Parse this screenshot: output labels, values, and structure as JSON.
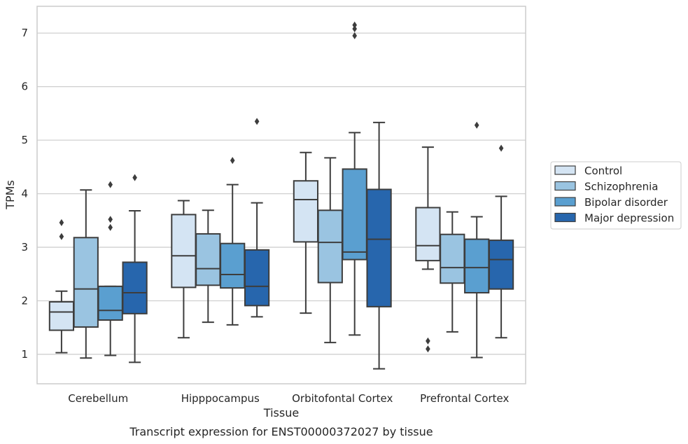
{
  "chart_data": {
    "type": "box",
    "caption": "Transcript expression for ENST00000372027 by tissue",
    "xlabel": "Tissue",
    "ylabel": "TPMs",
    "ylim": [
      0.45,
      7.5
    ],
    "yticks": [
      1,
      2,
      3,
      4,
      5,
      6,
      7
    ],
    "grid": "horizontal",
    "legend_position": "right",
    "categories": [
      "Cerebellum",
      "Hipppocampus",
      "Orbitofontal Cortex",
      "Prefrontal Cortex"
    ],
    "series": [
      {
        "name": "Control",
        "color": "#d4e4f3",
        "boxes": [
          {
            "min": 1.03,
            "q1": 1.45,
            "median": 1.79,
            "q3": 1.98,
            "max": 2.18,
            "outliers": [
              3.2,
              3.46
            ]
          },
          {
            "min": 1.31,
            "q1": 2.25,
            "median": 2.84,
            "q3": 3.61,
            "max": 3.87,
            "outliers": []
          },
          {
            "min": 1.77,
            "q1": 3.1,
            "median": 3.89,
            "q3": 4.24,
            "max": 4.77,
            "outliers": []
          },
          {
            "min": 2.59,
            "q1": 2.75,
            "median": 3.03,
            "q3": 3.74,
            "max": 4.87,
            "outliers": [
              1.1,
              1.25
            ]
          }
        ]
      },
      {
        "name": "Schizophrenia",
        "color": "#9ac4e1",
        "boxes": [
          {
            "min": 0.93,
            "q1": 1.51,
            "median": 2.22,
            "q3": 3.18,
            "max": 4.07,
            "outliers": []
          },
          {
            "min": 1.6,
            "q1": 2.29,
            "median": 2.6,
            "q3": 3.25,
            "max": 3.69,
            "outliers": []
          },
          {
            "min": 1.22,
            "q1": 2.34,
            "median": 3.09,
            "q3": 3.69,
            "max": 4.67,
            "outliers": []
          },
          {
            "min": 1.42,
            "q1": 2.33,
            "median": 2.62,
            "q3": 3.24,
            "max": 3.66,
            "outliers": []
          }
        ]
      },
      {
        "name": "Bipolar disorder",
        "color": "#5a9fd0",
        "boxes": [
          {
            "min": 0.98,
            "q1": 1.64,
            "median": 1.82,
            "q3": 2.27,
            "max": 2.27,
            "outliers": [
              3.37,
              3.52,
              4.17
            ]
          },
          {
            "min": 1.55,
            "q1": 2.24,
            "median": 2.49,
            "q3": 3.07,
            "max": 4.17,
            "outliers": [
              4.62
            ]
          },
          {
            "min": 1.36,
            "q1": 2.77,
            "median": 2.91,
            "q3": 4.46,
            "max": 5.14,
            "outliers": [
              6.95,
              7.08,
              7.15
            ]
          },
          {
            "min": 0.94,
            "q1": 2.15,
            "median": 2.62,
            "q3": 3.15,
            "max": 3.57,
            "outliers": [
              5.28
            ]
          }
        ]
      },
      {
        "name": "Major depression",
        "color": "#2766ad",
        "boxes": [
          {
            "min": 0.85,
            "q1": 1.76,
            "median": 2.15,
            "q3": 2.72,
            "max": 3.68,
            "outliers": [
              4.3
            ]
          },
          {
            "min": 1.7,
            "q1": 1.91,
            "median": 2.27,
            "q3": 2.95,
            "max": 3.83,
            "outliers": [
              5.35
            ]
          },
          {
            "min": 0.73,
            "q1": 1.89,
            "median": 3.15,
            "q3": 4.08,
            "max": 5.33,
            "outliers": []
          },
          {
            "min": 1.31,
            "q1": 2.22,
            "median": 2.77,
            "q3": 3.13,
            "max": 3.95,
            "outliers": [
              4.85
            ]
          }
        ]
      }
    ]
  }
}
